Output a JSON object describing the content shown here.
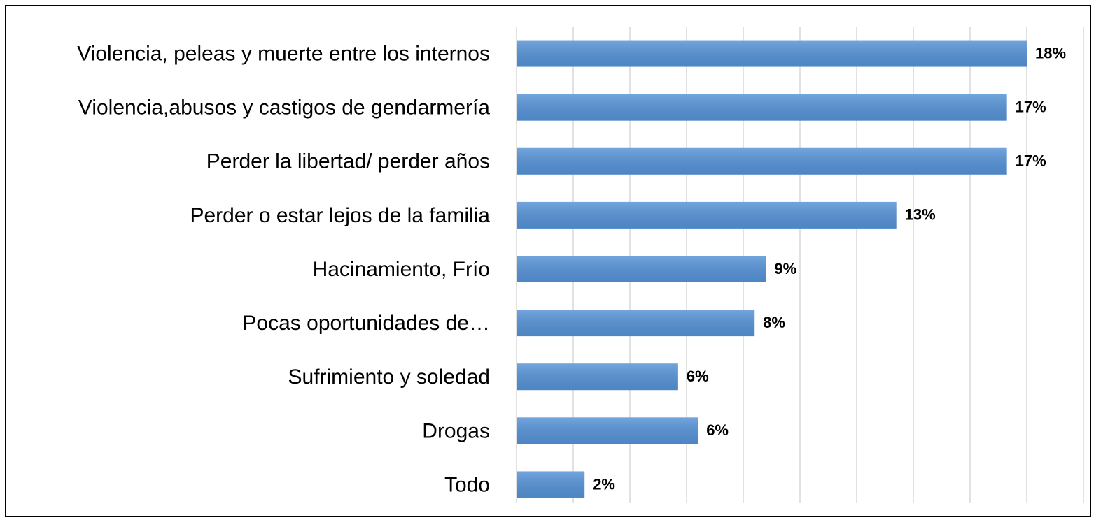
{
  "chart_data": {
    "type": "barh",
    "categories": [
      "Violencia, peleas y muerte entre los internos",
      "Violencia,abusos y castigos de gendarmería",
      "Perder la libertad/ perder años",
      "Perder o estar lejos de la familia",
      "Hacinamiento, Frío",
      "Pocas oportunidades de…",
      "Sufrimiento y soledad",
      "Drogas",
      "Todo"
    ],
    "values": [
      18,
      17.3,
      17.3,
      13.4,
      8.8,
      8.4,
      5.7,
      6.4,
      2.4
    ],
    "value_labels": [
      "18%",
      "17%",
      "17%",
      "13%",
      "9%",
      "8%",
      "6%",
      "6%",
      "2%"
    ],
    "color": "#5592d6",
    "xlim": [
      0,
      20
    ],
    "xticks": [
      0,
      2,
      4,
      6,
      8,
      10,
      12,
      14,
      16,
      18,
      20
    ],
    "grid": true
  }
}
